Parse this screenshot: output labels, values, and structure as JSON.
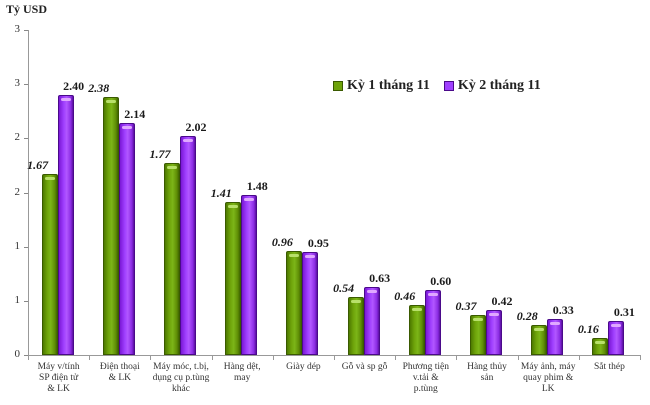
{
  "chart_data": {
    "type": "bar",
    "title": "",
    "ylabel": "Tỷ USD",
    "xlabel": "",
    "ylim": [
      0,
      3
    ],
    "yticks": [
      0,
      0.5,
      1,
      1.5,
      2,
      2.5,
      3
    ],
    "ytick_labels": [
      "0",
      "1",
      "1",
      "2",
      "2",
      "3",
      "3"
    ],
    "grid": false,
    "legend_position": "top-right",
    "categories": [
      "Máy v/tính SP điện tử & LK",
      "Điện thoại & LK",
      "Máy móc, t.bị, dụng cụ p.tùng khác",
      "Hàng dệt, may",
      "Giày dép",
      "Gỗ và sp gỗ",
      "Phương tiện v.tải & p.tùng",
      "Hàng thủy sản",
      "Máy ảnh, máy quay phim & LK",
      "Sắt thép"
    ],
    "series": [
      {
        "name": "Kỳ 1 tháng 11",
        "color": "#6ea30a",
        "values": [
          1.67,
          2.38,
          1.77,
          1.41,
          0.96,
          0.54,
          0.46,
          0.37,
          0.28,
          0.16
        ],
        "labels": [
          "1.67",
          "2.38",
          "1.77",
          "1.41",
          "0.96",
          "0.54",
          "0.46",
          "0.37",
          "0.28",
          "0.16"
        ]
      },
      {
        "name": "Kỳ 2 tháng 11",
        "color": "#a040ff",
        "values": [
          2.4,
          2.14,
          2.02,
          1.48,
          0.95,
          0.63,
          0.6,
          0.42,
          0.33,
          0.31
        ],
        "labels": [
          "2.40",
          "2.14",
          "2.02",
          "1.48",
          "0.95",
          "0.63",
          "0.60",
          "0.42",
          "0.33",
          "0.31"
        ]
      }
    ]
  },
  "x_labels": [
    [
      "Máy v/tính",
      "SP điện tử",
      "& LK"
    ],
    [
      "Điện thoại",
      "& LK"
    ],
    [
      "Máy móc, t.bị,",
      "dụng cụ p.tùng",
      "khác"
    ],
    [
      "Hàng dệt,",
      "may"
    ],
    [
      "Giày dép"
    ],
    [
      "Gỗ và sp gỗ"
    ],
    [
      "Phương tiện",
      "v.tải &",
      "p.tùng"
    ],
    [
      "Hàng thủy",
      "sản"
    ],
    [
      "Máy ảnh, máy",
      "quay phim &",
      "LK"
    ],
    [
      "Sắt thép"
    ]
  ]
}
